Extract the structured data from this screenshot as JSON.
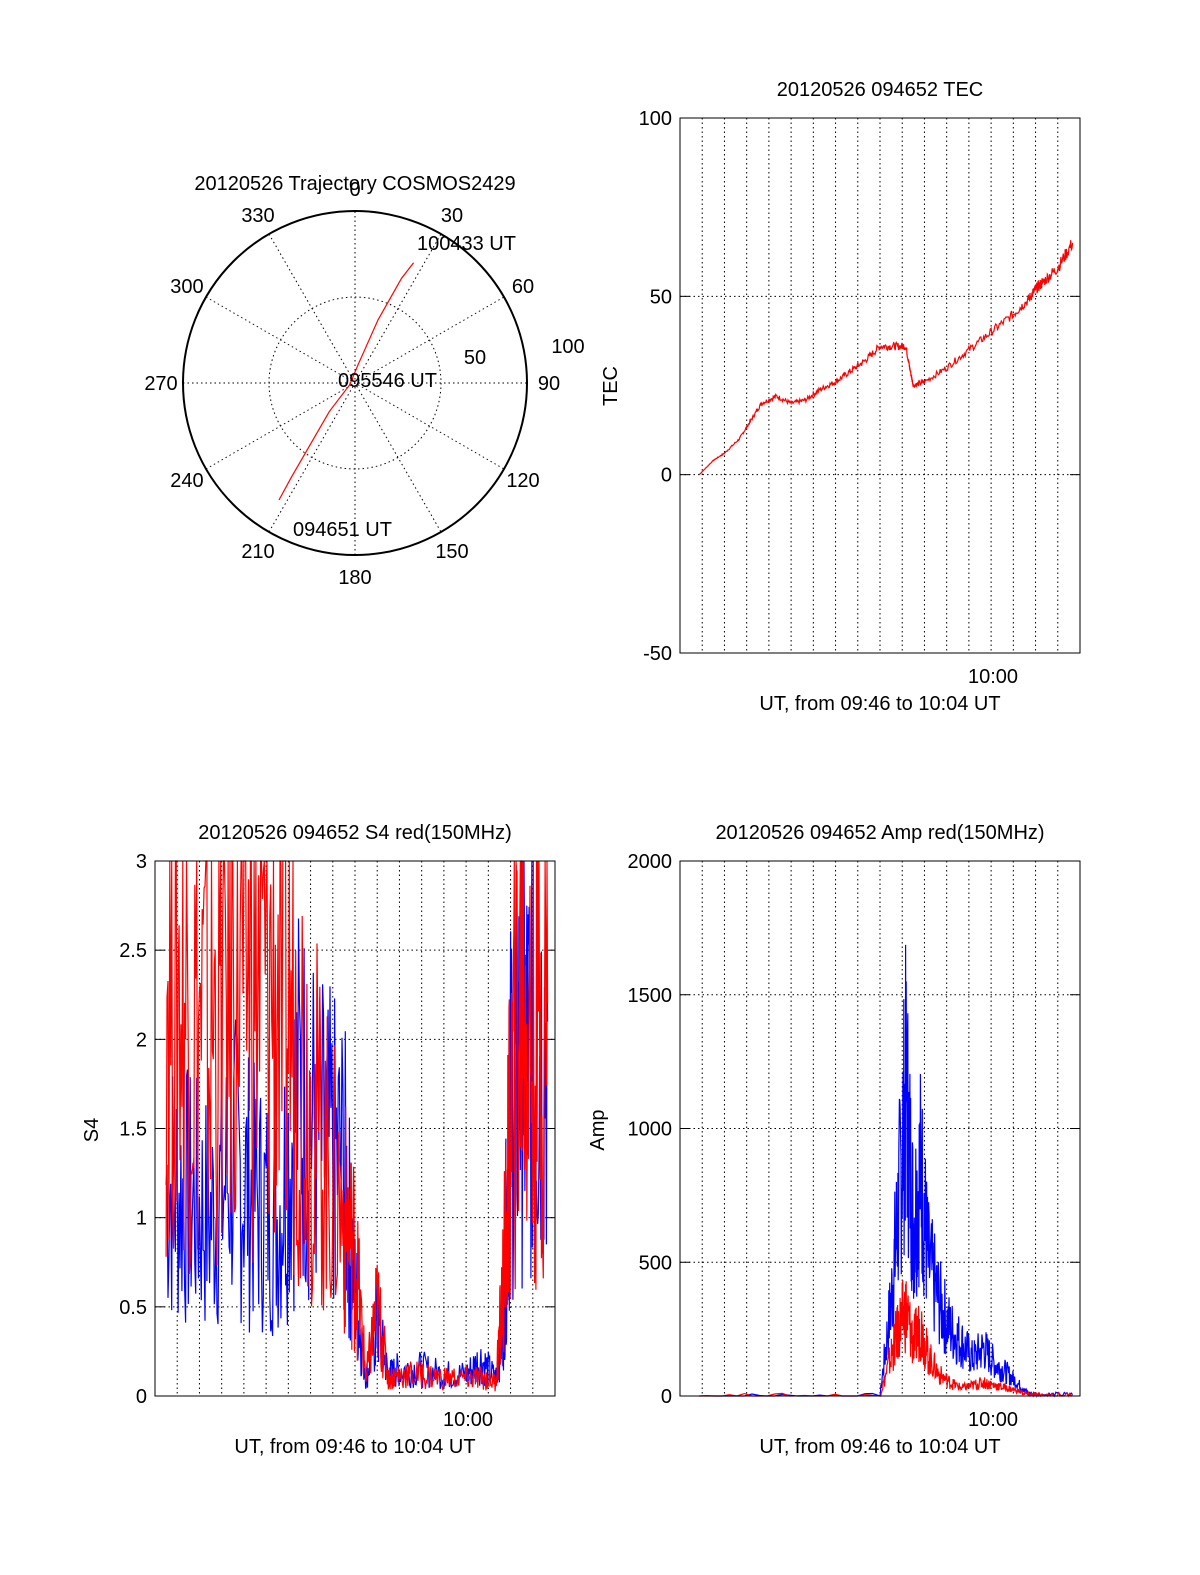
{
  "colors": {
    "red": "#ff0000",
    "blue": "#0000ff",
    "axis": "#000000",
    "background": "#ffffff"
  },
  "chart_data": [
    {
      "type": "polar",
      "title": "20120526 Trajectory COSMOS2429",
      "angle_labels": [
        "0",
        "30",
        "60",
        "90",
        "120",
        "150",
        "180",
        "210",
        "240",
        "270",
        "300",
        "330"
      ],
      "radial_labels": [
        "50",
        "100"
      ],
      "grid": true,
      "series": [
        {
          "color": "#ff0000",
          "points": [
            {
              "azimuth": 213,
              "elevation": 17
            },
            {
              "azimuth": 214,
              "elevation": 30
            },
            {
              "azimuth": 216,
              "elevation": 50
            },
            {
              "azimuth": 222,
              "elevation": 70
            },
            {
              "azimuth": 250,
              "elevation": 87
            },
            {
              "azimuth": 10,
              "elevation": 80
            },
            {
              "azimuth": 20,
              "elevation": 55
            },
            {
              "azimuth": 24,
              "elevation": 30
            },
            {
              "azimuth": 26,
              "elevation": 20
            }
          ]
        }
      ],
      "annotations": {
        "start": "094651 UT",
        "middle": "095546 UT",
        "end": "100433 UT"
      }
    },
    {
      "type": "line",
      "title": "20120526 094652 TEC",
      "xlabel": "UT, from 09:46 to 10:04 UT",
      "ylabel": "TEC",
      "x_range": [
        "09:46",
        "10:04"
      ],
      "ylim": [
        -50,
        100
      ],
      "yticks": [
        "-50",
        "0",
        "50",
        "100"
      ],
      "xtick_label": "10:00",
      "grid": true,
      "series": [
        {
          "color": "#ff0000",
          "x": [
            "09:46:52",
            "09:47:30",
            "09:48:00",
            "09:48:40",
            "09:49:10",
            "09:49:40",
            "09:50:20",
            "09:51:00",
            "09:51:40",
            "09:52:20",
            "09:53:00",
            "09:53:40",
            "09:54:20",
            "09:55:00",
            "09:55:40",
            "09:56:10",
            "09:56:20",
            "09:56:30",
            "09:57:00",
            "09:58:00",
            "09:59:00",
            "10:00:00",
            "10:01:00",
            "10:01:40",
            "10:02:00",
            "10:02:20",
            "10:03:00",
            "10:03:40"
          ],
          "values": [
            0,
            4,
            6,
            10,
            15,
            20,
            22,
            20,
            21,
            24,
            26,
            29,
            32,
            36,
            36,
            36,
            30,
            25,
            26,
            30,
            35,
            40,
            45,
            49,
            52,
            54,
            58,
            65
          ]
        }
      ]
    },
    {
      "type": "line",
      "title": "20120526 094652 S4 red(150MHz)",
      "xlabel": "UT, from 09:46 to 10:04 UT",
      "ylabel": "S4",
      "x_range": [
        "09:46",
        "10:04"
      ],
      "ylim": [
        0,
        3
      ],
      "yticks": [
        "0",
        "0.5",
        "1",
        "1.5",
        "2",
        "2.5",
        "3"
      ],
      "xtick_label": "10:00",
      "grid": true,
      "series": [
        {
          "color": "#0000ff",
          "x": [
            "09:46:30",
            "09:47:30",
            "09:48:30",
            "09:49:30",
            "09:50:30",
            "09:51:30",
            "09:52:30",
            "09:53:30",
            "09:54:30",
            "09:55:00",
            "09:55:30",
            "09:56:00",
            "09:56:30",
            "09:57:00",
            "09:58:00",
            "09:59:00",
            "10:00:00",
            "10:00:40",
            "10:01:20",
            "10:01:40",
            "10:02:00",
            "10:02:30",
            "10:03:00",
            "10:03:40"
          ],
          "values": [
            1.2,
            1.1,
            1.0,
            1.3,
            1.1,
            1.0,
            1.7,
            1.4,
            1.3,
            0.6,
            0.1,
            0.4,
            0.12,
            0.15,
            0.15,
            0.12,
            0.12,
            0.2,
            0.1,
            0.4,
            1.6,
            2.0,
            1.8,
            2.1
          ]
        },
        {
          "color": "#ff0000",
          "x": [
            "09:46:30",
            "09:47:30",
            "09:48:30",
            "09:49:30",
            "09:50:30",
            "09:51:30",
            "09:52:30",
            "09:53:30",
            "09:54:30",
            "09:55:00",
            "09:55:30",
            "09:56:00",
            "09:56:30",
            "09:57:00",
            "09:58:00",
            "09:59:00",
            "10:00:00",
            "10:00:40",
            "10:01:20",
            "10:01:40",
            "10:02:00",
            "10:02:30",
            "10:03:00",
            "10:03:40"
          ],
          "values": [
            2.5,
            2.2,
            2.0,
            2.6,
            2.4,
            2.3,
            2.0,
            1.4,
            1.0,
            0.8,
            0.1,
            0.5,
            0.1,
            0.12,
            0.12,
            0.1,
            0.1,
            0.1,
            0.08,
            0.6,
            1.5,
            2.5,
            1.8,
            2.2
          ]
        }
      ]
    },
    {
      "type": "line",
      "title": "20120526 094652 Amp red(150MHz)",
      "xlabel": "UT, from 09:46 to 10:04 UT",
      "ylabel": "Amp",
      "x_range": [
        "09:46",
        "10:04"
      ],
      "ylim": [
        0,
        2000
      ],
      "yticks": [
        "0",
        "500",
        "1000",
        "1500",
        "2000"
      ],
      "xtick_label": "10:00",
      "grid": true,
      "series": [
        {
          "color": "#0000ff",
          "x": [
            "09:46:52",
            "09:55:00",
            "09:55:30",
            "09:55:50",
            "09:56:10",
            "09:56:30",
            "09:56:50",
            "09:57:10",
            "09:57:40",
            "09:58:10",
            "09:58:40",
            "09:59:10",
            "09:59:40",
            "10:00:10",
            "10:00:40",
            "10:01:10",
            "10:01:40",
            "10:02:10",
            "10:03:40"
          ],
          "values": [
            0,
            0,
            350,
            700,
            1150,
            650,
            850,
            500,
            350,
            250,
            200,
            140,
            180,
            120,
            90,
            50,
            10,
            5,
            5
          ]
        },
        {
          "color": "#ff0000",
          "x": [
            "09:46:52",
            "09:55:00",
            "09:55:30",
            "09:55:50",
            "09:56:10",
            "09:56:30",
            "09:56:50",
            "09:57:10",
            "09:57:40",
            "09:58:10",
            "09:58:40",
            "09:59:10",
            "09:59:40",
            "10:00:10",
            "10:00:40",
            "10:01:10",
            "10:01:40",
            "10:02:10",
            "10:03:40"
          ],
          "values": [
            0,
            0,
            150,
            250,
            320,
            200,
            260,
            150,
            80,
            50,
            30,
            40,
            50,
            40,
            30,
            20,
            5,
            3,
            3
          ]
        }
      ]
    }
  ]
}
